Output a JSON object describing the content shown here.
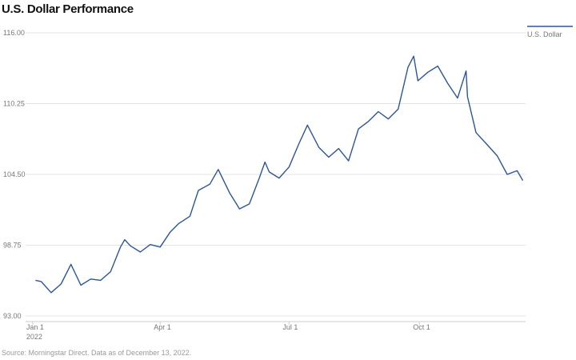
{
  "chart_data": {
    "type": "line",
    "title": "U.S. Dollar Performance",
    "source": "Source: Morningstar Direct. Data as of December 13, 2022.",
    "x": [
      "2022-01-03",
      "2022-01-07",
      "2022-01-14",
      "2022-01-21",
      "2022-01-28",
      "2022-02-04",
      "2022-02-11",
      "2022-02-18",
      "2022-02-25",
      "2022-03-04",
      "2022-03-07",
      "2022-03-11",
      "2022-03-18",
      "2022-03-25",
      "2022-04-01",
      "2022-04-08",
      "2022-04-14",
      "2022-04-22",
      "2022-04-28",
      "2022-05-06",
      "2022-05-12",
      "2022-05-20",
      "2022-05-27",
      "2022-06-03",
      "2022-06-10",
      "2022-06-14",
      "2022-06-17",
      "2022-06-24",
      "2022-07-01",
      "2022-07-08",
      "2022-07-14",
      "2022-07-22",
      "2022-07-29",
      "2022-08-05",
      "2022-08-12",
      "2022-08-19",
      "2022-08-26",
      "2022-09-02",
      "2022-09-09",
      "2022-09-16",
      "2022-09-23",
      "2022-09-27",
      "2022-09-30",
      "2022-10-07",
      "2022-10-14",
      "2022-10-21",
      "2022-10-28",
      "2022-11-03",
      "2022-11-04",
      "2022-11-10",
      "2022-11-18",
      "2022-11-25",
      "2022-12-02",
      "2022-12-09",
      "2022-12-13"
    ],
    "series": [
      {
        "name": "U.S. Dollar",
        "color": "#2c5598",
        "values": [
          95.9,
          95.8,
          94.9,
          95.6,
          97.2,
          95.5,
          96.0,
          95.9,
          96.6,
          98.6,
          99.2,
          98.7,
          98.2,
          98.8,
          98.6,
          99.8,
          100.5,
          101.1,
          103.2,
          103.7,
          104.9,
          103.0,
          101.7,
          102.1,
          104.2,
          105.5,
          104.7,
          104.2,
          105.1,
          107.0,
          108.5,
          106.7,
          105.9,
          106.6,
          105.6,
          108.2,
          108.8,
          109.6,
          109.0,
          109.8,
          113.2,
          114.1,
          112.1,
          112.8,
          113.3,
          111.9,
          110.7,
          112.9,
          110.8,
          107.9,
          106.9,
          106.0,
          104.5,
          104.8,
          104.0
        ]
      }
    ],
    "xlim": [
      "2021-12-27",
      "2022-12-15"
    ],
    "xticks": [
      {
        "value": "2022-01-01",
        "label": "Jan 1\n2022"
      },
      {
        "value": "2022-04-01",
        "label": "Apr 1"
      },
      {
        "value": "2022-07-01",
        "label": "Jul 1"
      },
      {
        "value": "2022-10-01",
        "label": "Oct 1"
      }
    ],
    "ylim": [
      93,
      116
    ],
    "yticks": [
      {
        "value": 93,
        "label": "93.00"
      },
      {
        "value": 98.75,
        "label": "98.75"
      },
      {
        "value": 104.5,
        "label": "104.50"
      },
      {
        "value": 110.25,
        "label": "110.25"
      },
      {
        "value": 116,
        "label": "116.00"
      }
    ],
    "grid": true
  }
}
